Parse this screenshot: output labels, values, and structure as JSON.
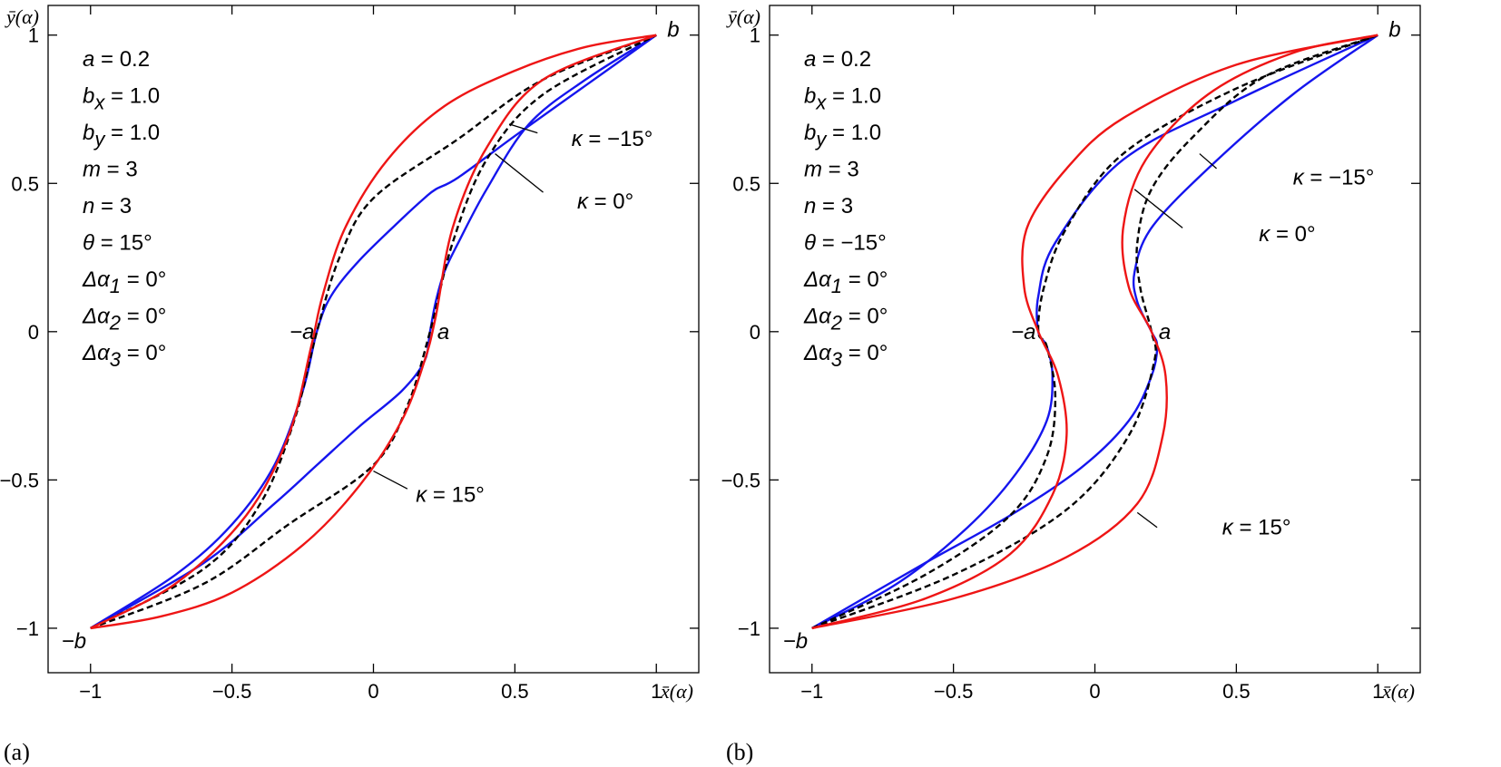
{
  "chart_data": [
    {
      "type": "line",
      "panel_label": "(a)",
      "ylabel": "ȳ(α)",
      "xlabel": "x̄(α)",
      "xlim": [
        -1.15,
        1.15
      ],
      "ylim": [
        -1.15,
        1.1
      ],
      "x_ticks": [
        -1,
        -0.5,
        0,
        0.5,
        1
      ],
      "x_tick_labels": [
        "−1",
        "−0.5",
        "0",
        "0.5",
        "1"
      ],
      "y_ticks": [
        -1,
        -0.5,
        0,
        0.5,
        1
      ],
      "y_tick_labels": [
        "−1",
        "−0.5",
        "0",
        "0.5",
        "1"
      ],
      "grid": false,
      "params": [
        "a = 0.2",
        "bx = 1.0",
        "by = 1.0",
        "m = 3",
        "n = 3",
        "θ = 15°",
        "Δα1 = 0°",
        "Δα2 = 0°",
        "Δα3 = 0°"
      ],
      "point_labels": [
        {
          "text": "b",
          "x": 1.0,
          "y": 1.0
        },
        {
          "text": "−b",
          "x": -1.0,
          "y": -1.0
        },
        {
          "text": "−a",
          "x": -0.2,
          "y": 0.0
        },
        {
          "text": "a",
          "x": 0.2,
          "y": 0.0
        }
      ],
      "annotations": [
        {
          "text": "κ = −15°",
          "x": 0.7,
          "y": 0.65
        },
        {
          "text": "κ = 0°",
          "x": 0.72,
          "y": 0.44
        },
        {
          "text": "κ = 15°",
          "x": 0.15,
          "y": -0.55
        }
      ],
      "series": [
        {
          "name": "κ = −15°",
          "color": "#1515ee",
          "dash": false,
          "x": [
            -1.0,
            -0.7,
            -0.5,
            -0.35,
            -0.25,
            -0.2,
            -0.15,
            -0.05,
            0.1,
            0.18,
            0.22,
            0.3,
            0.5,
            0.75,
            1.0
          ],
          "y": [
            -1.0,
            -0.82,
            -0.65,
            -0.45,
            -0.2,
            0.0,
            0.12,
            0.24,
            0.38,
            0.45,
            0.48,
            0.52,
            0.66,
            0.83,
            1.0
          ]
        },
        {
          "name": "κ = −15° (lower)",
          "color": "#1515ee",
          "dash": false,
          "x": [
            -1.0,
            -0.6,
            -0.35,
            -0.2,
            -0.05,
            0.1,
            0.18,
            0.2,
            0.22,
            0.25,
            0.3,
            0.4,
            0.55,
            0.75,
            1.0
          ],
          "y": [
            -1.0,
            -0.78,
            -0.58,
            -0.45,
            -0.32,
            -0.2,
            -0.1,
            0.0,
            0.1,
            0.2,
            0.3,
            0.48,
            0.7,
            0.85,
            1.0
          ]
        },
        {
          "name": "κ = 0°",
          "color": "#000000",
          "dash": true,
          "x": [
            -1.0,
            -0.6,
            -0.4,
            -0.28,
            -0.2,
            -0.12,
            0.0,
            0.3,
            0.6,
            1.0
          ],
          "y": [
            -1.0,
            -0.8,
            -0.58,
            -0.3,
            0.0,
            0.25,
            0.45,
            0.65,
            0.85,
            1.0
          ]
        },
        {
          "name": "κ = 0° (lower)",
          "color": "#000000",
          "dash": true,
          "x": [
            -1.0,
            -0.6,
            -0.3,
            0.0,
            0.12,
            0.2,
            0.28,
            0.4,
            0.6,
            1.0
          ],
          "y": [
            -1.0,
            -0.85,
            -0.65,
            -0.45,
            -0.25,
            0.0,
            0.3,
            0.58,
            0.8,
            1.0
          ]
        },
        {
          "name": "κ = 15°",
          "color": "#ee1515",
          "dash": false,
          "x": [
            -1.0,
            -0.7,
            -0.45,
            -0.3,
            -0.22,
            -0.18,
            -0.1,
            0.05,
            0.25,
            0.5,
            0.75,
            1.0
          ],
          "y": [
            -1.0,
            -0.85,
            -0.62,
            -0.35,
            -0.05,
            0.12,
            0.35,
            0.58,
            0.76,
            0.88,
            0.96,
            1.0
          ]
        },
        {
          "name": "κ = 15° (lower)",
          "color": "#ee1515",
          "dash": false,
          "x": [
            -1.0,
            -0.75,
            -0.5,
            -0.25,
            -0.05,
            0.1,
            0.18,
            0.22,
            0.28,
            0.4,
            0.6,
            1.0
          ],
          "y": [
            -1.0,
            -0.96,
            -0.88,
            -0.72,
            -0.52,
            -0.3,
            -0.1,
            0.05,
            0.35,
            0.62,
            0.85,
            1.0
          ]
        }
      ]
    },
    {
      "type": "line",
      "panel_label": "(b)",
      "ylabel": "ȳ(α)",
      "xlabel": "x̄(α)",
      "xlim": [
        -1.15,
        1.15
      ],
      "ylim": [
        -1.15,
        1.1
      ],
      "x_ticks": [
        -1,
        -0.5,
        0,
        0.5,
        1
      ],
      "x_tick_labels": [
        "−1",
        "−0.5",
        "0",
        "0.5",
        "1"
      ],
      "y_ticks": [
        -1,
        -0.5,
        0,
        0.5,
        1
      ],
      "y_tick_labels": [
        "−1",
        "−0.5",
        "0",
        "0.5",
        "1"
      ],
      "grid": false,
      "params": [
        "a = 0.2",
        "bx = 1.0",
        "by = 1.0",
        "m = 3",
        "n = 3",
        "θ = −15°",
        "Δα1 = 0°",
        "Δα2 = 0°",
        "Δα3 = 0°"
      ],
      "point_labels": [
        {
          "text": "b",
          "x": 1.0,
          "y": 1.0
        },
        {
          "text": "−b",
          "x": -1.0,
          "y": -1.0
        },
        {
          "text": "−a",
          "x": -0.2,
          "y": 0.0
        },
        {
          "text": "a",
          "x": 0.2,
          "y": 0.0
        }
      ],
      "annotations": [
        {
          "text": "κ = −15°",
          "x": 0.7,
          "y": 0.52
        },
        {
          "text": "κ = 0°",
          "x": 0.58,
          "y": 0.33
        },
        {
          "text": "κ = 15°",
          "x": 0.45,
          "y": -0.66
        }
      ],
      "series": [
        {
          "name": "κ = −15°",
          "color": "#1515ee",
          "dash": false,
          "x": [
            -1.0,
            -0.7,
            -0.45,
            -0.28,
            -0.17,
            -0.15,
            -0.17,
            -0.2,
            -0.2,
            -0.14,
            0.1,
            0.5,
            1.0
          ],
          "y": [
            -1.0,
            -0.85,
            -0.66,
            -0.48,
            -0.3,
            -0.15,
            -0.05,
            0.0,
            0.12,
            0.3,
            0.58,
            0.78,
            1.0
          ]
        },
        {
          "name": "κ = −15° (lower)",
          "color": "#1515ee",
          "dash": false,
          "x": [
            -1.0,
            -0.6,
            -0.3,
            -0.05,
            0.12,
            0.2,
            0.22,
            0.2,
            0.15,
            0.14,
            0.2,
            0.4,
            0.7,
            1.0
          ],
          "y": [
            -1.0,
            -0.78,
            -0.62,
            -0.46,
            -0.3,
            -0.15,
            -0.05,
            0.0,
            0.1,
            0.2,
            0.35,
            0.55,
            0.8,
            1.0
          ]
        },
        {
          "name": "κ = 0°",
          "color": "#000000",
          "dash": true,
          "x": [
            -1.0,
            -0.6,
            -0.3,
            -0.17,
            -0.14,
            -0.17,
            -0.2,
            -0.18,
            -0.1,
            0.1,
            0.5,
            1.0
          ],
          "y": [
            -1.0,
            -0.82,
            -0.62,
            -0.42,
            -0.22,
            -0.05,
            0.0,
            0.15,
            0.35,
            0.6,
            0.82,
            1.0
          ]
        },
        {
          "name": "κ = 0° (lower)",
          "color": "#000000",
          "dash": true,
          "x": [
            -1.0,
            -0.5,
            -0.1,
            0.12,
            0.21,
            0.2,
            0.16,
            0.15,
            0.2,
            0.35,
            0.6,
            1.0
          ],
          "y": [
            -1.0,
            -0.82,
            -0.6,
            -0.35,
            -0.1,
            0.0,
            0.15,
            0.3,
            0.48,
            0.66,
            0.86,
            1.0
          ]
        },
        {
          "name": "κ = 15°",
          "color": "#ee1515",
          "dash": false,
          "x": [
            -1.0,
            -0.6,
            -0.3,
            -0.15,
            -0.1,
            -0.13,
            -0.2,
            -0.25,
            -0.24,
            -0.1,
            0.1,
            0.5,
            1.0
          ],
          "y": [
            -1.0,
            -0.9,
            -0.75,
            -0.55,
            -0.35,
            -0.15,
            0.0,
            0.15,
            0.35,
            0.55,
            0.72,
            0.9,
            1.0
          ]
        },
        {
          "name": "κ = 15° (lower)",
          "color": "#ee1515",
          "dash": false,
          "x": [
            -1.0,
            -0.5,
            -0.1,
            0.15,
            0.24,
            0.25,
            0.2,
            0.12,
            0.1,
            0.18,
            0.4,
            0.7,
            1.0
          ],
          "y": [
            -1.0,
            -0.9,
            -0.76,
            -0.58,
            -0.35,
            -0.15,
            0.0,
            0.15,
            0.35,
            0.58,
            0.8,
            0.94,
            1.0
          ]
        }
      ]
    }
  ]
}
